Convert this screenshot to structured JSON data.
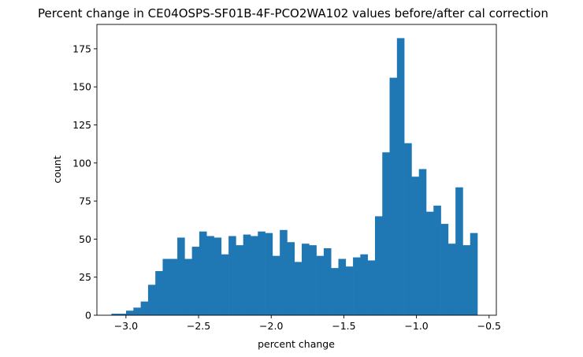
{
  "chart_data": {
    "type": "bar",
    "title": "Percent change in CE04OSPS-SF01B-4F-PCO2WA102 values before/after cal correction",
    "xlabel": "percent change",
    "ylabel": "count",
    "xlim": [
      -3.2,
      -0.45
    ],
    "ylim": [
      0,
      191
    ],
    "grid": false,
    "legend": "none",
    "bar_color": "#1f77b4",
    "x_ticks": [
      -3.0,
      -2.5,
      -2.0,
      -1.5,
      -1.0,
      -0.5
    ],
    "x_tick_labels": [
      "−3.0",
      "−2.5",
      "−2.0",
      "−1.5",
      "−1.0",
      "−0.5"
    ],
    "y_ticks": [
      0,
      25,
      50,
      75,
      100,
      125,
      150,
      175
    ],
    "y_tick_labels": [
      "0",
      "25",
      "50",
      "75",
      "100",
      "125",
      "150",
      "175"
    ],
    "bin_start": -3.1,
    "bin_width": 0.0504,
    "values": [
      1,
      1,
      3,
      5,
      9,
      20,
      29,
      37,
      37,
      51,
      37,
      45,
      55,
      52,
      51,
      40,
      52,
      46,
      53,
      52,
      55,
      54,
      39,
      56,
      48,
      35,
      47,
      46,
      39,
      44,
      31,
      37,
      32,
      38,
      40,
      36,
      65,
      107,
      156,
      182,
      113,
      91,
      96,
      68,
      72,
      60,
      47,
      84,
      46,
      54
    ]
  }
}
